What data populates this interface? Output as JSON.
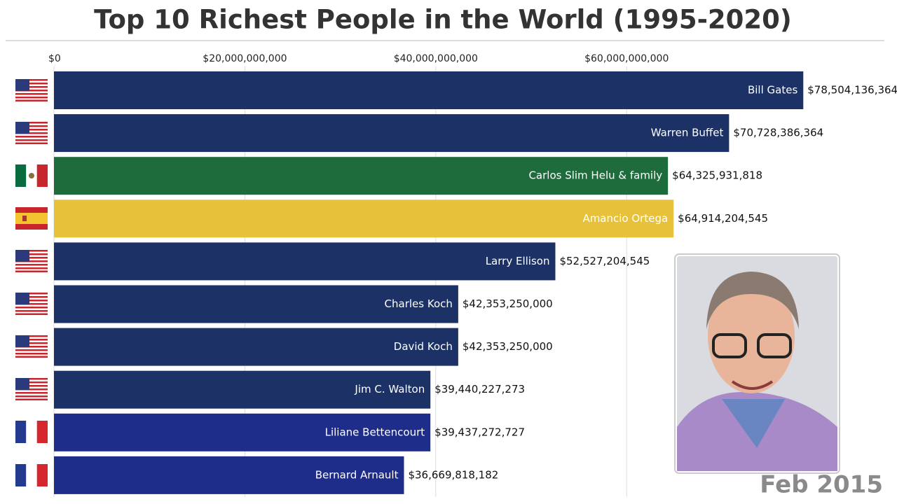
{
  "chart_data": {
    "type": "bar",
    "orientation": "horizontal",
    "title": "Top 10 Richest People in the World (1995-2020)",
    "annotation": "Feb 2015",
    "categories": [
      "Bill Gates",
      "Warren Buffet",
      "Carlos Slim Helu & family",
      "Amancio Ortega",
      "Larry Ellison",
      "Charles Koch",
      "David Koch",
      "Jim C. Walton",
      "Liliane Bettencourt",
      "Bernard Arnault"
    ],
    "values": [
      78504136364,
      70728386364,
      64325931818,
      64914204545,
      52527204545,
      42353250000,
      42353250000,
      39440227273,
      39437272727,
      36669818182
    ],
    "value_labels": [
      "$78,504,136,364",
      "$70,728,386,364",
      "$64,325,931,818",
      "$64,914,204,545",
      "$52,527,204,545",
      "$42,353,250,000",
      "$42,353,250,000",
      "$39,440,227,273",
      "$39,437,272,727",
      "$36,669,818,182"
    ],
    "colors": [
      "#1c3166",
      "#1c3166",
      "#1e6b3c",
      "#e8c13a",
      "#1c3166",
      "#1c3166",
      "#1c3166",
      "#1c3166",
      "#1f2d8a",
      "#1f2d8a"
    ],
    "xlim": [
      0,
      87000000000
    ],
    "xticks": [
      {
        "value": 0,
        "label": "$0"
      },
      {
        "value": 20000000000,
        "label": "$20,000,000,000"
      },
      {
        "value": 40000000000,
        "label": "$40,000,000,000"
      },
      {
        "value": 60000000000,
        "label": "$60,000,000,000"
      }
    ],
    "grid": true
  }
}
